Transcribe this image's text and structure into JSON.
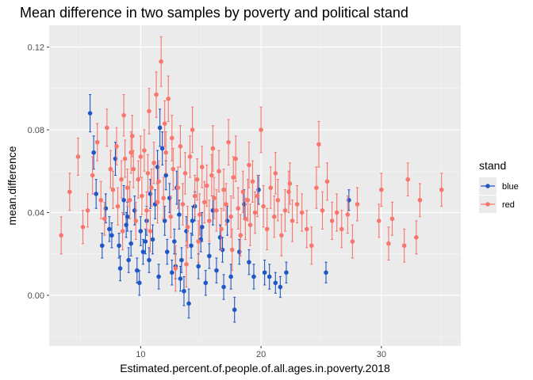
{
  "chart_data": {
    "type": "scatter",
    "title": "Mean difference in two samples by poverty and political stand",
    "xlabel": "Estimated.percent.of.people.of.all.ages.in.poverty.2018",
    "ylabel": "mean.difference",
    "xlim": [
      2.4,
      36.6
    ],
    "ylim": [
      -0.0245,
      0.1305
    ],
    "x_ticks": [
      10,
      20,
      30
    ],
    "x_tick_labels": [
      "10",
      "20",
      "30"
    ],
    "y_ticks": [
      0.0,
      0.04,
      0.08,
      0.12
    ],
    "y_tick_labels": [
      "0.00",
      "0.04",
      "0.08",
      "0.12"
    ],
    "grid": true,
    "error_bars": true,
    "legend": {
      "title": "stand",
      "placement": "right",
      "entries": [
        {
          "label": "blue",
          "color": "#1f57c4"
        },
        {
          "label": "red",
          "color": "#f8766d"
        }
      ]
    },
    "series": [
      {
        "name": "blue",
        "color": "#1f57c4",
        "points": [
          [
            5.8,
            0.088,
            0.009
          ],
          [
            6.1,
            0.069,
            0.008
          ],
          [
            6.3,
            0.049,
            0.007
          ],
          [
            6.8,
            0.024,
            0.006
          ],
          [
            7.1,
            0.042,
            0.007
          ],
          [
            7.4,
            0.032,
            0.006
          ],
          [
            7.6,
            0.029,
            0.006
          ],
          [
            7.9,
            0.066,
            0.008
          ],
          [
            8.2,
            0.024,
            0.006
          ],
          [
            8.3,
            0.013,
            0.006
          ],
          [
            8.6,
            0.046,
            0.007
          ],
          [
            8.8,
            0.034,
            0.006
          ],
          [
            9.0,
            0.017,
            0.006
          ],
          [
            9.2,
            0.025,
            0.006
          ],
          [
            9.5,
            0.041,
            0.007
          ],
          [
            9.7,
            0.012,
            0.006
          ],
          [
            10.0,
            0.031,
            0.007
          ],
          [
            10.2,
            0.021,
            0.006
          ],
          [
            10.5,
            0.036,
            0.007
          ],
          [
            10.7,
            0.017,
            0.006
          ],
          [
            11.0,
            0.027,
            0.007
          ],
          [
            11.2,
            0.044,
            0.007
          ],
          [
            11.4,
            0.062,
            0.008
          ],
          [
            11.6,
            0.081,
            0.009
          ],
          [
            11.8,
            0.071,
            0.008
          ],
          [
            12.0,
            0.036,
            0.007
          ],
          [
            12.2,
            0.021,
            0.006
          ],
          [
            12.4,
            0.047,
            0.007
          ],
          [
            12.6,
            0.011,
            0.006
          ],
          [
            12.8,
            0.026,
            0.006
          ],
          [
            13.0,
            0.052,
            0.008
          ],
          [
            13.2,
            0.039,
            0.007
          ],
          [
            13.4,
            0.017,
            0.006
          ],
          [
            13.6,
            0.002,
            0.007
          ],
          [
            13.8,
            0.031,
            0.007
          ],
          [
            14.0,
            -0.004,
            0.007
          ],
          [
            14.2,
            0.024,
            0.006
          ],
          [
            14.5,
            0.043,
            0.007
          ],
          [
            14.8,
            0.014,
            0.006
          ],
          [
            15.1,
            0.033,
            0.007
          ],
          [
            15.4,
            0.006,
            0.006
          ],
          [
            15.7,
            0.019,
            0.006
          ],
          [
            16.0,
            0.041,
            0.007
          ],
          [
            16.3,
            0.012,
            0.006
          ],
          [
            16.6,
            0.028,
            0.006
          ],
          [
            16.9,
            0.004,
            0.006
          ],
          [
            17.2,
            0.036,
            0.007
          ],
          [
            17.5,
            0.009,
            0.006
          ],
          [
            17.8,
            -0.007,
            0.006
          ],
          [
            18.2,
            0.021,
            0.006
          ],
          [
            18.6,
            0.044,
            0.007
          ],
          [
            19.0,
            0.016,
            0.006
          ],
          [
            19.4,
            0.009,
            0.006
          ],
          [
            19.8,
            0.051,
            0.007
          ],
          [
            20.3,
            0.011,
            0.006
          ],
          [
            20.7,
            0.009,
            0.006
          ],
          [
            21.2,
            0.006,
            0.005
          ],
          [
            21.6,
            0.004,
            0.005
          ],
          [
            22.1,
            0.011,
            0.005
          ],
          [
            25.4,
            0.011,
            0.005
          ],
          [
            27.3,
            0.046,
            0.005
          ],
          [
            12.1,
            0.058,
            0.007
          ],
          [
            10.8,
            0.049,
            0.007
          ],
          [
            9.9,
            0.006,
            0.006
          ],
          [
            13.3,
            0.008,
            0.006
          ],
          [
            15.0,
            0.027,
            0.006
          ],
          [
            11.5,
            0.009,
            0.006
          ],
          [
            8.9,
            0.038,
            0.007
          ],
          [
            14.3,
            0.036,
            0.007
          ],
          [
            16.8,
            0.022,
            0.006
          ],
          [
            12.9,
            0.014,
            0.006
          ],
          [
            10.4,
            0.026,
            0.006
          ]
        ]
      },
      {
        "name": "red",
        "color": "#f8766d",
        "points": [
          [
            3.4,
            0.029,
            0.009
          ],
          [
            4.1,
            0.05,
            0.009
          ],
          [
            4.8,
            0.067,
            0.009
          ],
          [
            5.2,
            0.033,
            0.008
          ],
          [
            5.6,
            0.041,
            0.008
          ],
          [
            6.0,
            0.058,
            0.009
          ],
          [
            6.4,
            0.074,
            0.009
          ],
          [
            6.7,
            0.046,
            0.009
          ],
          [
            7.0,
            0.037,
            0.008
          ],
          [
            7.2,
            0.081,
            0.009
          ],
          [
            7.5,
            0.061,
            0.009
          ],
          [
            7.7,
            0.051,
            0.009
          ],
          [
            8.0,
            0.072,
            0.009
          ],
          [
            8.1,
            0.043,
            0.009
          ],
          [
            8.4,
            0.056,
            0.009
          ],
          [
            8.5,
            0.031,
            0.009
          ],
          [
            8.7,
            0.066,
            0.009
          ],
          [
            8.9,
            0.052,
            0.009
          ],
          [
            9.1,
            0.046,
            0.009
          ],
          [
            9.3,
            0.077,
            0.01
          ],
          [
            9.4,
            0.061,
            0.009
          ],
          [
            9.6,
            0.036,
            0.009
          ],
          [
            9.8,
            0.056,
            0.009
          ],
          [
            10.0,
            0.067,
            0.01
          ],
          [
            10.1,
            0.048,
            0.009
          ],
          [
            10.3,
            0.07,
            0.01
          ],
          [
            10.5,
            0.041,
            0.009
          ],
          [
            10.6,
            0.059,
            0.009
          ],
          [
            10.8,
            0.031,
            0.01
          ],
          [
            10.9,
            0.052,
            0.009
          ],
          [
            11.1,
            0.064,
            0.01
          ],
          [
            11.3,
            0.097,
            0.011
          ],
          [
            11.5,
            0.055,
            0.01
          ],
          [
            11.7,
            0.113,
            0.012
          ],
          [
            11.9,
            0.047,
            0.01
          ],
          [
            12.1,
            0.069,
            0.01
          ],
          [
            12.3,
            0.095,
            0.011
          ],
          [
            12.5,
            0.038,
            0.01
          ],
          [
            12.7,
            0.061,
            0.01
          ],
          [
            12.9,
            0.013,
            0.011
          ],
          [
            13.1,
            0.052,
            0.01
          ],
          [
            13.3,
            0.072,
            0.01
          ],
          [
            13.5,
            0.044,
            0.01
          ],
          [
            13.7,
            0.059,
            0.01
          ],
          [
            13.9,
            0.033,
            0.01
          ],
          [
            14.1,
            0.067,
            0.01
          ],
          [
            14.3,
            0.08,
            0.011
          ],
          [
            14.5,
            0.048,
            0.01
          ],
          [
            14.7,
            0.056,
            0.01
          ],
          [
            14.9,
            0.039,
            0.01
          ],
          [
            15.1,
            0.062,
            0.01
          ],
          [
            15.3,
            0.045,
            0.01
          ],
          [
            15.5,
            0.053,
            0.01
          ],
          [
            15.7,
            0.036,
            0.01
          ],
          [
            15.9,
            0.058,
            0.01
          ],
          [
            16.1,
            0.047,
            0.01
          ],
          [
            16.3,
            0.041,
            0.01
          ],
          [
            16.5,
            0.06,
            0.01
          ],
          [
            16.7,
            0.032,
            0.01
          ],
          [
            16.9,
            0.051,
            0.01
          ],
          [
            17.1,
            0.044,
            0.01
          ],
          [
            17.3,
            0.074,
            0.011
          ],
          [
            17.5,
            0.038,
            0.01
          ],
          [
            17.7,
            0.057,
            0.01
          ],
          [
            17.9,
            0.066,
            0.011
          ],
          [
            18.1,
            0.042,
            0.01
          ],
          [
            18.3,
            0.029,
            0.01
          ],
          [
            18.5,
            0.05,
            0.01
          ],
          [
            18.7,
            0.037,
            0.01
          ],
          [
            18.9,
            0.046,
            0.01
          ],
          [
            19.1,
            0.034,
            0.01
          ],
          [
            19.3,
            0.055,
            0.01
          ],
          [
            19.5,
            0.04,
            0.01
          ],
          [
            19.7,
            0.048,
            0.01
          ],
          [
            20.0,
            0.08,
            0.011
          ],
          [
            20.2,
            0.043,
            0.01
          ],
          [
            20.5,
            0.032,
            0.01
          ],
          [
            20.8,
            0.052,
            0.01
          ],
          [
            21.1,
            0.038,
            0.01
          ],
          [
            21.4,
            0.046,
            0.01
          ],
          [
            21.7,
            0.029,
            0.01
          ],
          [
            22.0,
            0.041,
            0.01
          ],
          [
            22.3,
            0.05,
            0.01
          ],
          [
            22.6,
            0.036,
            0.01
          ],
          [
            23.0,
            0.044,
            0.009
          ],
          [
            23.4,
            0.04,
            0.009
          ],
          [
            23.8,
            0.032,
            0.009
          ],
          [
            24.2,
            0.024,
            0.009
          ],
          [
            24.6,
            0.052,
            0.01
          ],
          [
            24.8,
            0.073,
            0.011
          ],
          [
            25.1,
            0.041,
            0.009
          ],
          [
            25.5,
            0.055,
            0.009
          ],
          [
            25.9,
            0.036,
            0.009
          ],
          [
            26.3,
            0.04,
            0.009
          ],
          [
            26.7,
            0.032,
            0.009
          ],
          [
            27.2,
            0.039,
            0.009
          ],
          [
            27.6,
            0.026,
            0.008
          ],
          [
            28.0,
            0.044,
            0.008
          ],
          [
            29.8,
            0.036,
            0.008
          ],
          [
            30.0,
            0.051,
            0.008
          ],
          [
            30.6,
            0.025,
            0.008
          ],
          [
            30.9,
            0.037,
            0.008
          ],
          [
            31.9,
            0.024,
            0.008
          ],
          [
            32.2,
            0.056,
            0.008
          ],
          [
            32.9,
            0.028,
            0.008
          ],
          [
            33.2,
            0.046,
            0.008
          ],
          [
            35.0,
            0.051,
            0.008
          ],
          [
            12.0,
            0.083,
            0.011
          ],
          [
            10.7,
            0.089,
            0.011
          ],
          [
            8.6,
            0.087,
            0.01
          ],
          [
            13.8,
            0.015,
            0.011
          ],
          [
            16.0,
            0.071,
            0.011
          ],
          [
            19.0,
            0.063,
            0.011
          ],
          [
            21.2,
            0.059,
            0.01
          ],
          [
            11.4,
            0.045,
            0.01
          ],
          [
            14.8,
            0.026,
            0.01
          ],
          [
            9.2,
            0.069,
            0.01
          ],
          [
            17.6,
            0.022,
            0.01
          ],
          [
            22.4,
            0.054,
            0.01
          ],
          [
            12.6,
            0.076,
            0.011
          ]
        ]
      }
    ]
  }
}
